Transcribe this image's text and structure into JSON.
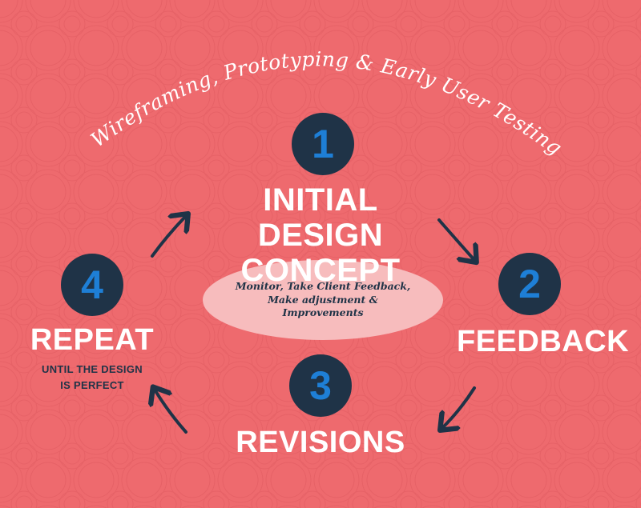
{
  "heading": "Wireframing, Prototyping & Early User Testing",
  "colors": {
    "background": "#ee6a6e",
    "circle_fill": "#1f3347",
    "number_text": "#1e7fd6",
    "label_text": "#ffffff",
    "sub_text": "#1f3347",
    "ellipse_fill": "#f7bcbd",
    "arrow": "#1f3347"
  },
  "center": {
    "lines": [
      "Monitor, Take Client Feedback,",
      "Make adjustment &",
      "Improvements"
    ]
  },
  "steps": [
    {
      "number": "1",
      "label_lines": [
        "INITIAL DESIGN",
        "CONCEPT"
      ]
    },
    {
      "number": "2",
      "label_lines": [
        "FEEDBACK"
      ]
    },
    {
      "number": "3",
      "label_lines": [
        "REVISIONS"
      ]
    },
    {
      "number": "4",
      "label_lines": [
        "REPEAT"
      ],
      "sub_lines": [
        "UNTIL THE DESIGN",
        "IS PERFECT"
      ]
    }
  ],
  "arrows": [
    {
      "from": "1",
      "to": "2",
      "icon": "arrow-down-right-icon"
    },
    {
      "from": "2",
      "to": "3",
      "icon": "arrow-down-left-icon"
    },
    {
      "from": "3",
      "to": "4",
      "icon": "arrow-up-left-icon"
    },
    {
      "from": "4",
      "to": "1",
      "icon": "arrow-up-right-icon"
    }
  ]
}
